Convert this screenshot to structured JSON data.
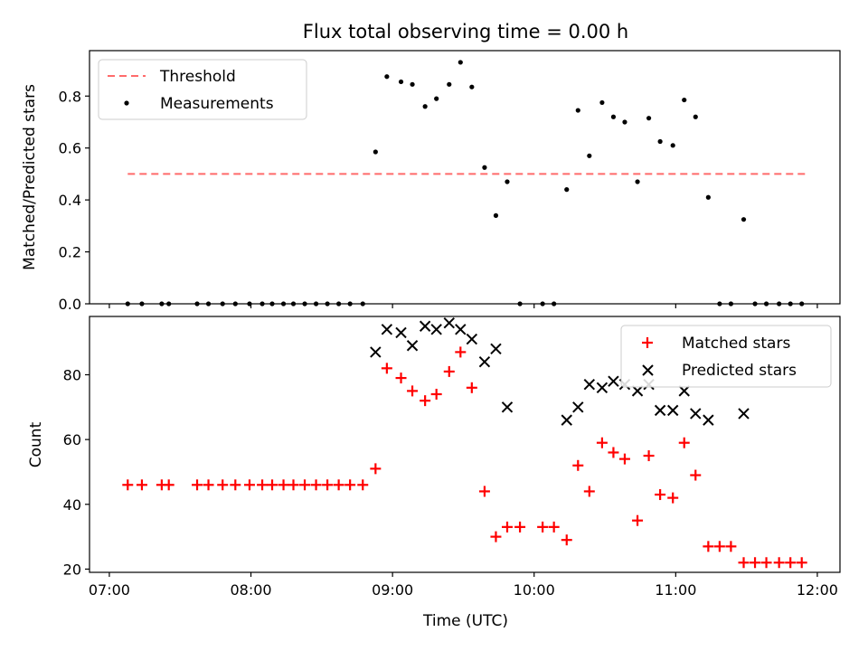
{
  "title": "Flux total observing time = 0.00 h",
  "xlabel": "Time (UTC)",
  "xticks": [
    {
      "label": "07:00",
      "value": 7.0
    },
    {
      "label": "08:00",
      "value": 8.0
    },
    {
      "label": "09:00",
      "value": 9.0
    },
    {
      "label": "10:00",
      "value": 10.0
    },
    {
      "label": "11:00",
      "value": 11.0
    },
    {
      "label": "12:00",
      "value": 12.0
    }
  ],
  "colors": {
    "threshold": "#ff6b6b",
    "measurements": "#000000",
    "matched": "#ff0000",
    "predicted": "#000000"
  },
  "chart_data": [
    {
      "type": "scatter",
      "ylabel": "Matched/Predicted stars",
      "xlim": [
        6.86,
        12.16
      ],
      "ylim": [
        0,
        0.975
      ],
      "yticks": [
        0.0,
        0.2,
        0.4,
        0.6,
        0.8
      ],
      "ytick_labels": [
        "0.0",
        "0.2",
        "0.4",
        "0.6",
        "0.8"
      ],
      "legend": "top-left",
      "threshold": {
        "name": "Threshold",
        "y": 0.5,
        "x": [
          7.13,
          11.93
        ]
      },
      "series": [
        {
          "name": "Measurements",
          "marker": "dot",
          "x": [
            7.13,
            7.23,
            7.37,
            7.42,
            7.62,
            7.7,
            7.8,
            7.89,
            7.99,
            8.08,
            8.15,
            8.23,
            8.3,
            8.38,
            8.46,
            8.54,
            8.62,
            8.7,
            8.79,
            8.88,
            8.96,
            9.06,
            9.14,
            9.23,
            9.31,
            9.4,
            9.48,
            9.56,
            9.65,
            9.73,
            9.81,
            9.9,
            10.06,
            10.14,
            10.23,
            10.31,
            10.39,
            10.48,
            10.56,
            10.64,
            10.73,
            10.81,
            10.89,
            10.98,
            11.06,
            11.14,
            11.23,
            11.31,
            11.39,
            11.48,
            11.56,
            11.64,
            11.73,
            11.81,
            11.89
          ],
          "y": [
            0,
            0,
            0,
            0,
            0,
            0,
            0,
            0,
            0,
            0,
            0,
            0,
            0,
            0,
            0,
            0,
            0,
            0,
            0,
            0.585,
            0.875,
            0.855,
            0.845,
            0.76,
            0.79,
            0.845,
            0.93,
            0.835,
            0.525,
            0.34,
            0.47,
            0,
            0,
            0,
            0.44,
            0.745,
            0.57,
            0.775,
            0.72,
            0.7,
            0.47,
            0.715,
            0.625,
            0.61,
            0.785,
            0.72,
            0.41,
            0,
            0,
            0.325,
            0,
            0,
            0,
            0,
            0
          ]
        }
      ]
    },
    {
      "type": "scatter",
      "ylabel": "Count",
      "xlim": [
        6.86,
        12.16
      ],
      "ylim": [
        19,
        98
      ],
      "yticks": [
        20,
        40,
        60,
        80
      ],
      "ytick_labels": [
        "20",
        "40",
        "60",
        "80"
      ],
      "legend": "top-right",
      "series": [
        {
          "name": "Matched stars",
          "marker": "plus",
          "x": [
            7.13,
            7.23,
            7.37,
            7.42,
            7.62,
            7.7,
            7.8,
            7.89,
            7.99,
            8.08,
            8.15,
            8.23,
            8.3,
            8.38,
            8.46,
            8.54,
            8.62,
            8.7,
            8.79,
            8.88,
            8.96,
            9.06,
            9.14,
            9.23,
            9.31,
            9.4,
            9.48,
            9.56,
            9.65,
            9.73,
            9.81,
            9.9,
            10.06,
            10.14,
            10.23,
            10.31,
            10.39,
            10.48,
            10.56,
            10.64,
            10.73,
            10.81,
            10.89,
            10.98,
            11.06,
            11.14,
            11.23,
            11.31,
            11.39,
            11.48,
            11.56,
            11.64,
            11.73,
            11.81,
            11.89
          ],
          "y": [
            46,
            46,
            46,
            46,
            46,
            46,
            46,
            46,
            46,
            46,
            46,
            46,
            46,
            46,
            46,
            46,
            46,
            46,
            46,
            51,
            82,
            79,
            75,
            72,
            74,
            81,
            87,
            76,
            44,
            30,
            33,
            33,
            33,
            33,
            29,
            52,
            44,
            59,
            56,
            54,
            35,
            55,
            43,
            42,
            59,
            49,
            27,
            27,
            27,
            22,
            22,
            22,
            22,
            22,
            22
          ]
        },
        {
          "name": "Predicted stars",
          "marker": "x",
          "x": [
            8.88,
            8.96,
            9.06,
            9.14,
            9.23,
            9.31,
            9.4,
            9.48,
            9.56,
            9.65,
            9.73,
            9.81,
            10.23,
            10.31,
            10.39,
            10.48,
            10.56,
            10.64,
            10.73,
            10.81,
            10.89,
            10.98,
            11.06,
            11.14,
            11.23,
            11.48
          ],
          "y": [
            87,
            94,
            93,
            89,
            95,
            94,
            96,
            94,
            91,
            84,
            88,
            70,
            66,
            70,
            77,
            76,
            78,
            77,
            75,
            77,
            69,
            69,
            75,
            68,
            66,
            68
          ]
        }
      ]
    }
  ]
}
